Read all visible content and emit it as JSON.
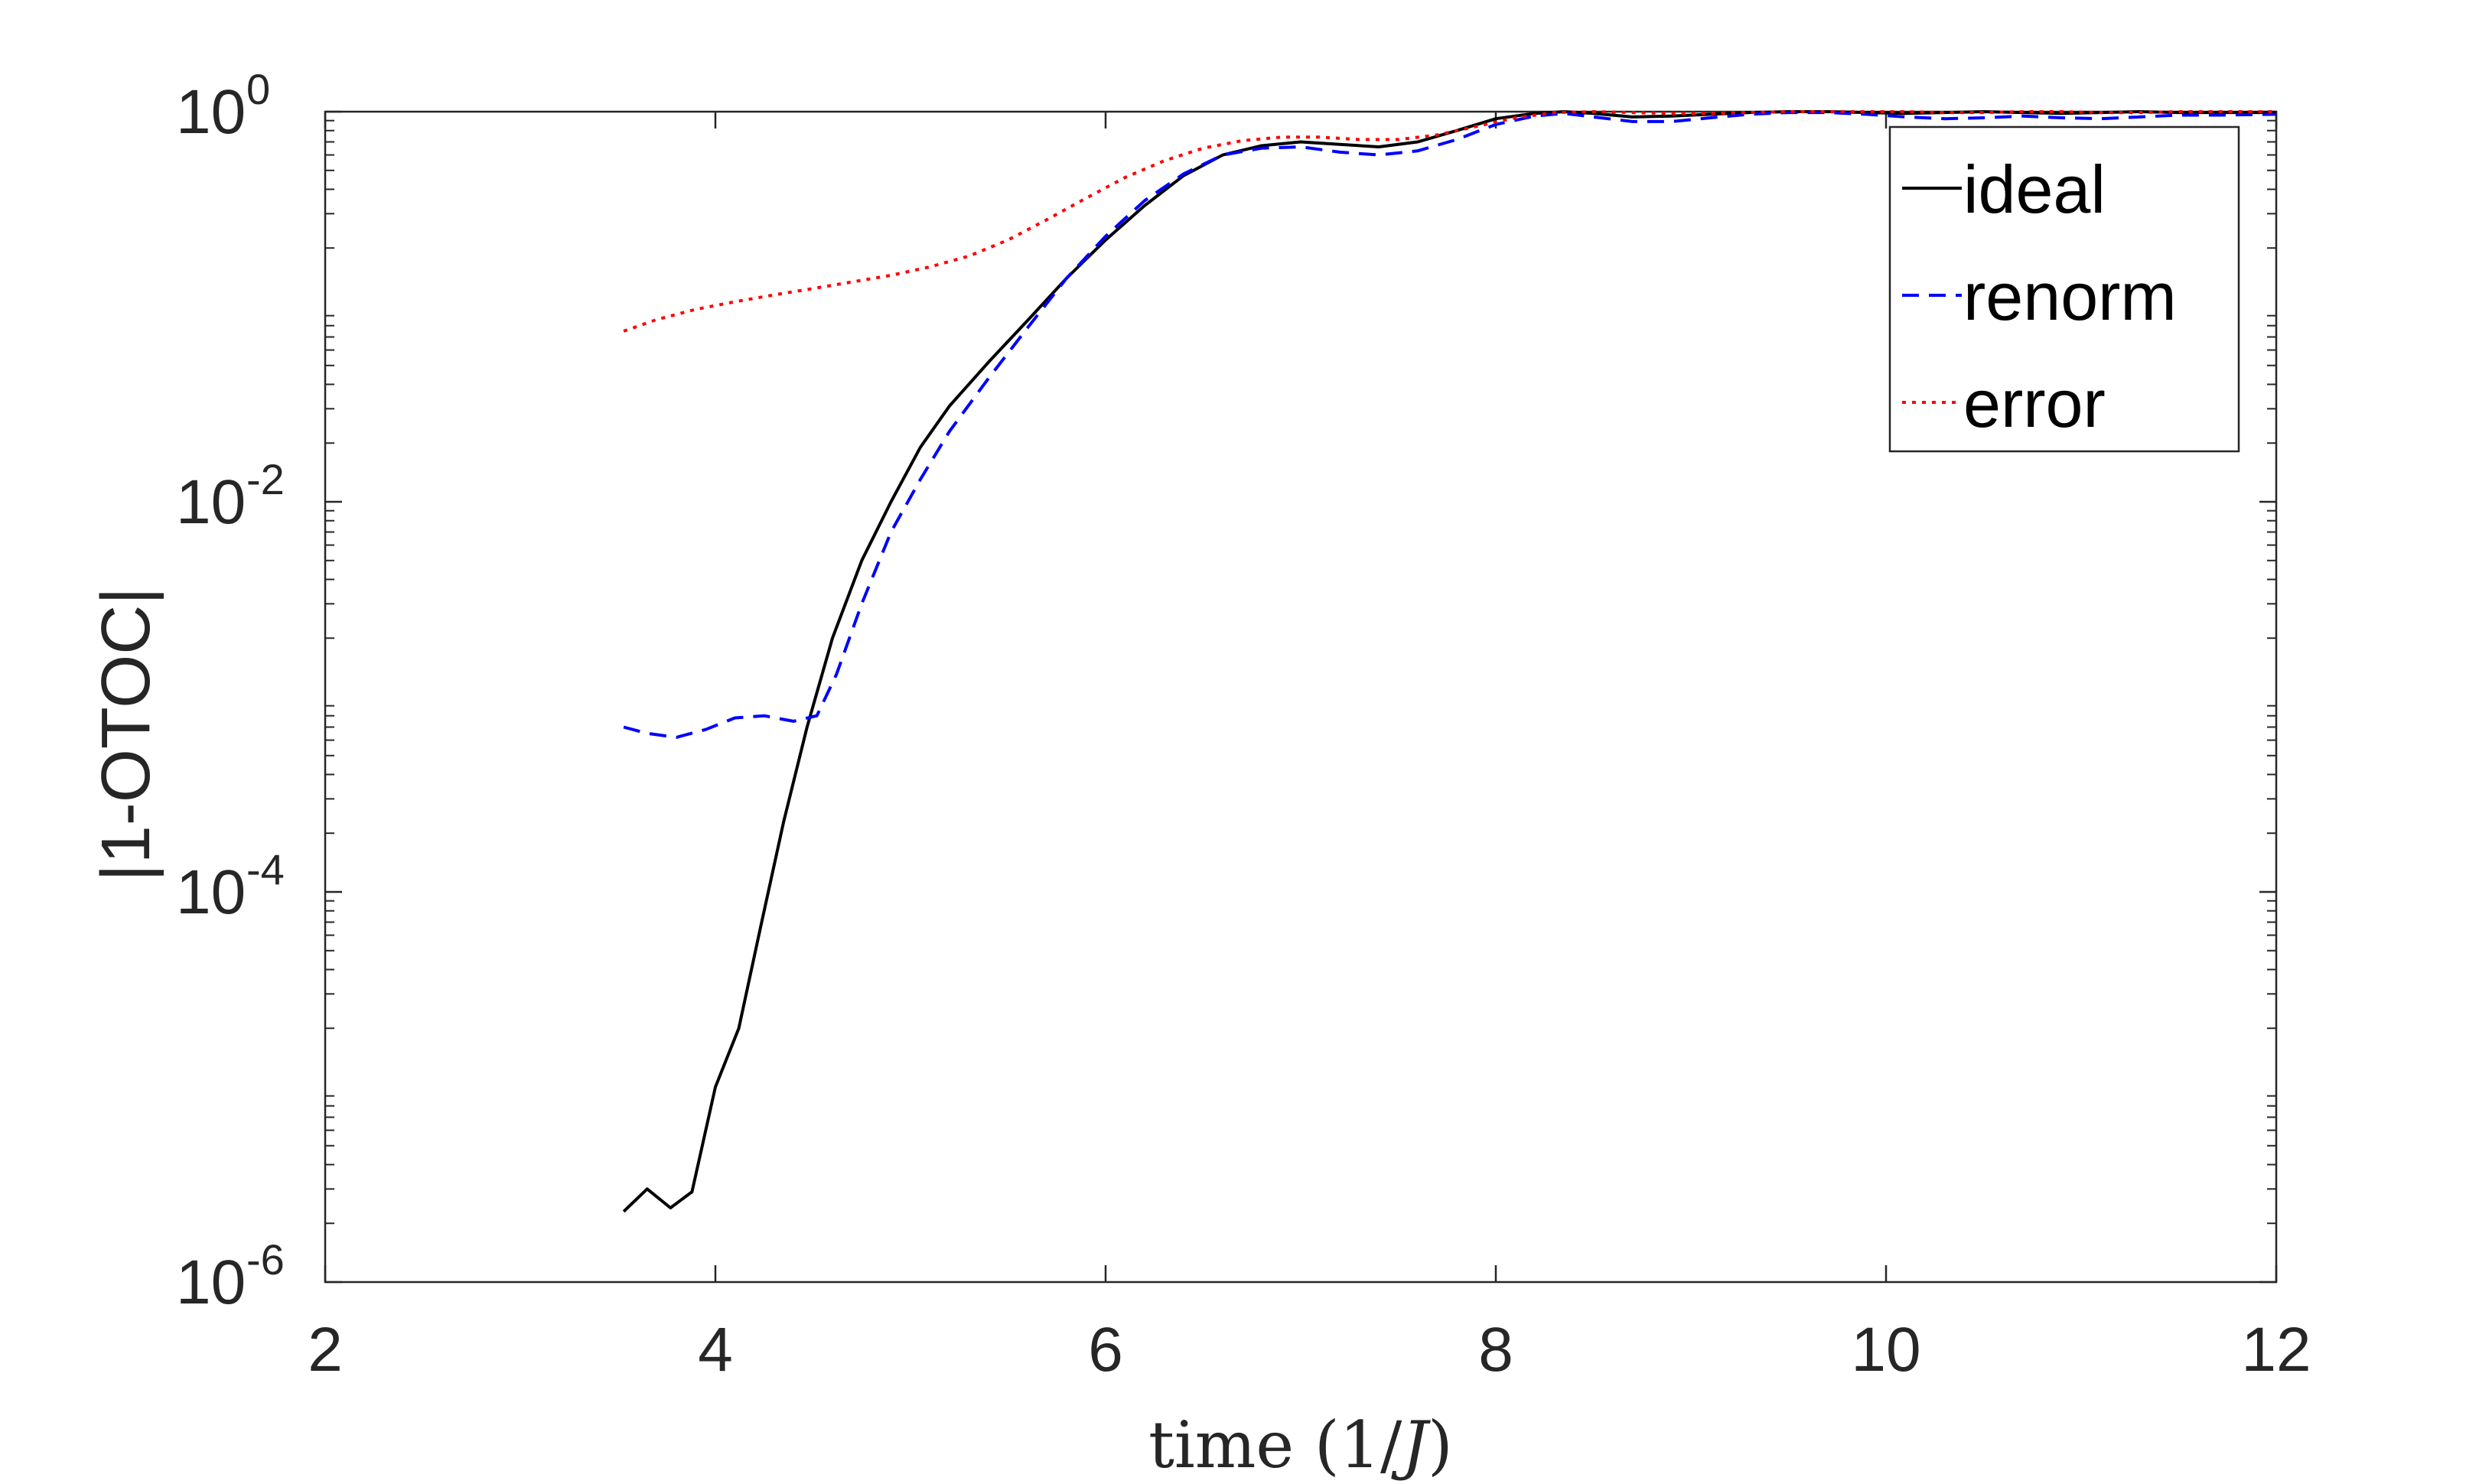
{
  "chart_data": {
    "type": "line",
    "title": "",
    "xlabel": "time (1/J)",
    "ylabel": "|1-OTOC|",
    "xlim": [
      2,
      12
    ],
    "ylim": [
      1e-06,
      1
    ],
    "yscale": "log",
    "xticks": [
      2,
      4,
      6,
      8,
      10,
      12
    ],
    "yticks": [
      {
        "base": "10",
        "exp": "-6",
        "value": 1e-06
      },
      {
        "base": "10",
        "exp": "-4",
        "value": 0.0001
      },
      {
        "base": "10",
        "exp": "-2",
        "value": 0.01
      },
      {
        "base": "10",
        "exp": "0",
        "value": 1
      }
    ],
    "grid": false,
    "legend_position": "top-right",
    "series": [
      {
        "name": "ideal",
        "color": "#000000",
        "style": "solid",
        "x": [
          3.53,
          3.65,
          3.77,
          3.88,
          4.0,
          4.12,
          4.23,
          4.35,
          4.47,
          4.6,
          4.75,
          4.9,
          5.05,
          5.2,
          5.4,
          5.6,
          5.8,
          6.0,
          6.2,
          6.4,
          6.6,
          6.8,
          7.0,
          7.2,
          7.4,
          7.6,
          7.8,
          8.0,
          8.2,
          8.35,
          8.5,
          8.7,
          8.9,
          9.1,
          9.3,
          9.5,
          9.7,
          9.9,
          10.1,
          10.3,
          10.5,
          10.7,
          10.9,
          11.1,
          11.3,
          11.5,
          11.7,
          12.0
        ],
        "y": [
          2.3e-06,
          3e-06,
          2.4e-06,
          2.9e-06,
          1e-05,
          2e-05,
          6.5e-05,
          0.00023,
          0.0007,
          0.002,
          0.005,
          0.01,
          0.019,
          0.031,
          0.052,
          0.085,
          0.14,
          0.22,
          0.33,
          0.47,
          0.6,
          0.67,
          0.7,
          0.68,
          0.66,
          0.7,
          0.8,
          0.92,
          0.98,
          1.0,
          0.98,
          0.94,
          0.95,
          0.97,
          0.99,
          1.0,
          1.0,
          0.99,
          0.98,
          0.99,
          1.0,
          0.99,
          0.98,
          0.99,
          1.0,
          0.99,
          0.99,
          0.99
        ]
      },
      {
        "name": "renorm",
        "color": "#0000ff",
        "style": "dashed",
        "x": [
          3.53,
          3.65,
          3.8,
          3.95,
          4.1,
          4.25,
          4.4,
          4.52,
          4.62,
          4.75,
          4.9,
          5.05,
          5.2,
          5.4,
          5.6,
          5.8,
          6.0,
          6.2,
          6.4,
          6.6,
          6.8,
          7.0,
          7.2,
          7.4,
          7.6,
          7.8,
          8.0,
          8.2,
          8.35,
          8.5,
          8.7,
          8.9,
          9.1,
          9.3,
          9.5,
          9.7,
          9.9,
          10.1,
          10.3,
          10.5,
          10.7,
          10.9,
          11.1,
          11.3,
          11.5,
          11.7,
          12.0
        ],
        "y": [
          0.0007,
          0.00065,
          0.00062,
          0.00068,
          0.00078,
          0.0008,
          0.00075,
          0.0008,
          0.0013,
          0.003,
          0.007,
          0.013,
          0.023,
          0.043,
          0.078,
          0.14,
          0.23,
          0.35,
          0.48,
          0.6,
          0.65,
          0.66,
          0.62,
          0.6,
          0.63,
          0.72,
          0.86,
          0.95,
          0.98,
          0.94,
          0.89,
          0.89,
          0.93,
          0.97,
          0.99,
          0.99,
          0.97,
          0.94,
          0.92,
          0.93,
          0.95,
          0.93,
          0.92,
          0.94,
          0.96,
          0.96,
          0.97
        ]
      },
      {
        "name": "error",
        "color": "#ff0000",
        "style": "dotted",
        "x": [
          3.53,
          3.7,
          3.9,
          4.1,
          4.3,
          4.5,
          4.7,
          4.9,
          5.1,
          5.3,
          5.5,
          5.7,
          5.9,
          6.1,
          6.3,
          6.5,
          6.7,
          6.9,
          7.1,
          7.3,
          7.5,
          7.7,
          7.9,
          8.1,
          8.3,
          8.5,
          8.7,
          8.9,
          9.1,
          9.3,
          9.5,
          9.7,
          9.9,
          10.1,
          10.3,
          10.5,
          10.7,
          10.9,
          11.1,
          11.3,
          11.5,
          11.7,
          12.0
        ],
        "y": [
          0.075,
          0.086,
          0.097,
          0.106,
          0.115,
          0.124,
          0.134,
          0.145,
          0.16,
          0.182,
          0.22,
          0.28,
          0.36,
          0.46,
          0.56,
          0.65,
          0.71,
          0.74,
          0.74,
          0.72,
          0.72,
          0.76,
          0.84,
          0.93,
          0.99,
          1.0,
          0.99,
          0.98,
          0.98,
          0.99,
          1.0,
          1.0,
          1.0,
          1.0,
          0.99,
          0.99,
          1.0,
          1.0,
          0.99,
          0.99,
          1.0,
          1.0,
          1.0
        ]
      }
    ]
  }
}
